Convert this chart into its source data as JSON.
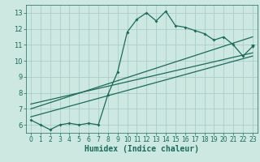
{
  "bg_color": "#cce8e0",
  "grid_color": "#aacccc",
  "line_color": "#1a6b5a",
  "xlabel": "Humidex (Indice chaleur)",
  "xlim": [
    -0.5,
    23.5
  ],
  "ylim": [
    5.5,
    13.5
  ],
  "xticks": [
    0,
    1,
    2,
    3,
    4,
    5,
    6,
    7,
    8,
    9,
    10,
    11,
    12,
    13,
    14,
    15,
    16,
    17,
    18,
    19,
    20,
    21,
    22,
    23
  ],
  "yticks": [
    6,
    7,
    8,
    9,
    10,
    11,
    12,
    13
  ],
  "series1_x": [
    0,
    1,
    2,
    3,
    4,
    5,
    6,
    7,
    8,
    9,
    10,
    11,
    12,
    13,
    14,
    15,
    16,
    17,
    18,
    19,
    20,
    21,
    22,
    23
  ],
  "series1_y": [
    6.3,
    6.0,
    5.7,
    6.0,
    6.1,
    6.0,
    6.1,
    6.0,
    7.9,
    9.3,
    11.8,
    12.6,
    13.0,
    12.5,
    13.1,
    12.2,
    12.1,
    11.9,
    11.7,
    11.3,
    11.5,
    11.0,
    10.3,
    10.9
  ],
  "series2_x": [
    0,
    23
  ],
  "series2_y": [
    6.5,
    10.3
  ],
  "series3_x": [
    0,
    23
  ],
  "series3_y": [
    7.0,
    11.5
  ],
  "series4_x": [
    0,
    23
  ],
  "series4_y": [
    7.3,
    10.5
  ],
  "xlabel_fontsize": 7,
  "tick_fontsize": 5.5
}
